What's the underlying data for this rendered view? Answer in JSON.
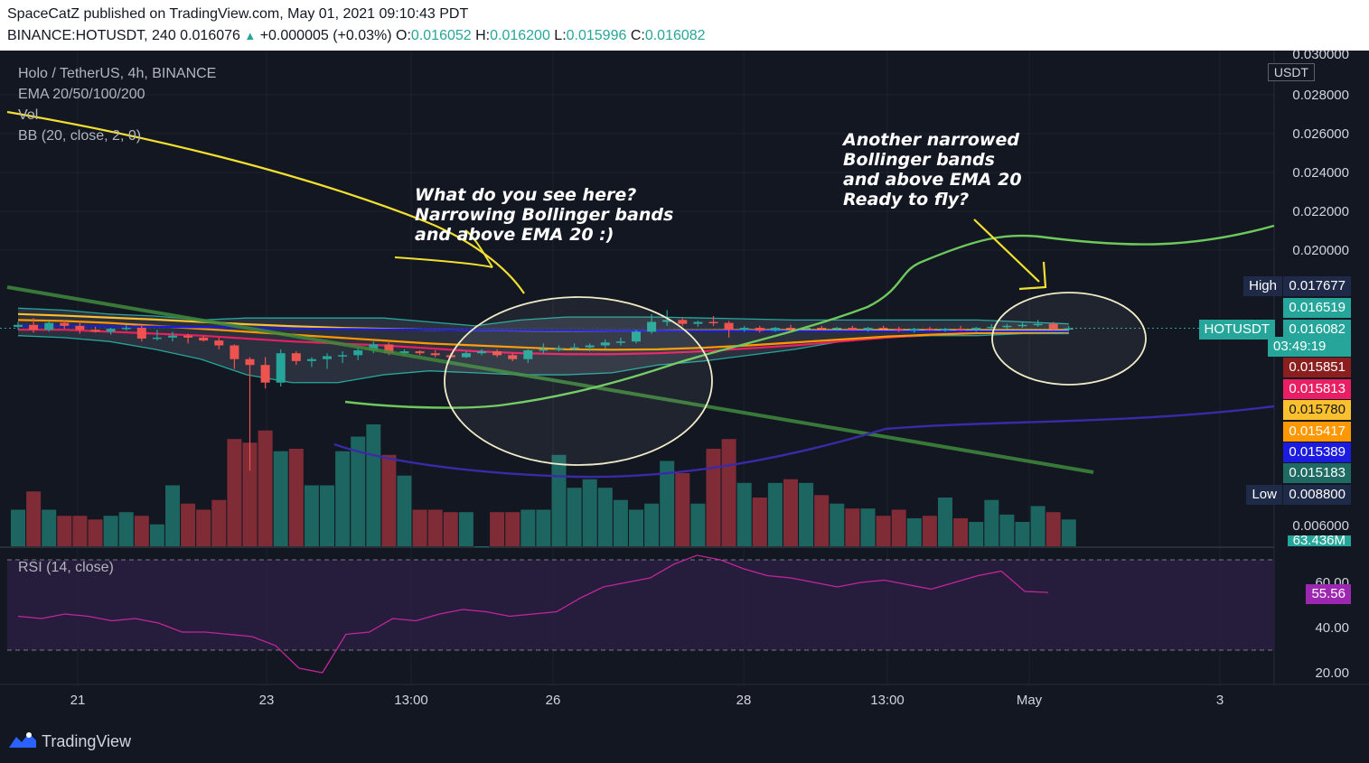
{
  "header": {
    "publish_line": "SpaceCatZ published on TradingView.com, May 01, 2021 09:10:43 PDT",
    "symbol": "BINANCE:HOTUSDT, 240",
    "last": "0.016076",
    "up_glyph": "▲",
    "change": "+0.000005 (+0.03%)",
    "o_label": "O:",
    "o_value": "0.016052",
    "h_label": "H:",
    "h_value": "0.016200",
    "l_label": "L:",
    "l_value": "0.015996",
    "c_label": "C:",
    "c_value": "0.016082"
  },
  "legend": {
    "pair": "Holo / TetherUS, 4h, BINANCE",
    "ema": "EMA 20/50/100/200",
    "vol": "Vol",
    "bb": "BB (20, close, 2, 0)",
    "rsi": "RSI (14, close)"
  },
  "annotations": {
    "note1": "What do you see here?\nNarrowing Bollinger bands\nand above EMA 20 :)",
    "note2": "Another narrowed\nBollinger bands\nand above EMA 20\nReady to fly?"
  },
  "price_axis": {
    "currency": "USDT",
    "ticks": [
      "0.030000",
      "0.028000",
      "0.026000",
      "0.024000",
      "0.022000",
      "0.020000",
      "0.006000"
    ],
    "rsi_ticks": [
      "60.00",
      "40.00",
      "20.00"
    ]
  },
  "price_tags": {
    "high_label": "High",
    "high_value": "0.017677",
    "t1": "0.016519",
    "symbol_label": "HOTUSDT",
    "symbol_value": "0.016082",
    "countdown": "03:49:19",
    "t2": "0.015851",
    "t3": "0.015813",
    "t4": "0.015780",
    "t5": "0.015417",
    "t6": "0.015389",
    "t7": "0.015183",
    "low_label": "Low",
    "low_value": "0.008800",
    "volume": "63.436M",
    "rsi_value": "55.56"
  },
  "time_axis": {
    "ticks": [
      "21",
      "23",
      "13:00",
      "26",
      "28",
      "13:00",
      "May",
      "3"
    ]
  },
  "footer": {
    "brand": "TradingView"
  },
  "colors": {
    "background": "#131722",
    "up": "#26a69a",
    "down": "#ef5350",
    "ema20": "#e91e63",
    "ema50": "#ff9800",
    "ema100": "#fbc02d",
    "ema200": "#1c1ce0",
    "bb_band": "#26a69a",
    "rsi": "#9c27b0"
  },
  "chart_data": {
    "type": "candlestick",
    "title": "Holo / TetherUS, 4h, BINANCE",
    "timeframe": "4h",
    "x_ticks": [
      "21",
      "23",
      "13:00",
      "26",
      "28",
      "13:00",
      "May",
      "3"
    ],
    "candles": [
      {
        "o": 0.01615,
        "h": 0.0164,
        "l": 0.016,
        "c": 0.01625
      },
      {
        "o": 0.01625,
        "h": 0.0166,
        "l": 0.01585,
        "c": 0.016
      },
      {
        "o": 0.016,
        "h": 0.01645,
        "l": 0.0159,
        "c": 0.01635
      },
      {
        "o": 0.01635,
        "h": 0.0165,
        "l": 0.01605,
        "c": 0.0162
      },
      {
        "o": 0.0162,
        "h": 0.0164,
        "l": 0.0158,
        "c": 0.016
      },
      {
        "o": 0.016,
        "h": 0.01615,
        "l": 0.01585,
        "c": 0.0159
      },
      {
        "o": 0.0159,
        "h": 0.0161,
        "l": 0.01575,
        "c": 0.01605
      },
      {
        "o": 0.01605,
        "h": 0.01625,
        "l": 0.01595,
        "c": 0.0161
      },
      {
        "o": 0.0161,
        "h": 0.0162,
        "l": 0.0154,
        "c": 0.01555
      },
      {
        "o": 0.01555,
        "h": 0.016,
        "l": 0.01545,
        "c": 0.0156
      },
      {
        "o": 0.0156,
        "h": 0.0159,
        "l": 0.0154,
        "c": 0.0157
      },
      {
        "o": 0.0157,
        "h": 0.0158,
        "l": 0.0153,
        "c": 0.0156
      },
      {
        "o": 0.0156,
        "h": 0.0157,
        "l": 0.0154,
        "c": 0.01545
      },
      {
        "o": 0.01545,
        "h": 0.0156,
        "l": 0.015,
        "c": 0.0152
      },
      {
        "o": 0.0152,
        "h": 0.01525,
        "l": 0.014,
        "c": 0.0145
      },
      {
        "o": 0.0145,
        "h": 0.0146,
        "l": 0.0088,
        "c": 0.0142
      },
      {
        "o": 0.0142,
        "h": 0.0146,
        "l": 0.013,
        "c": 0.0133
      },
      {
        "o": 0.0133,
        "h": 0.015,
        "l": 0.0131,
        "c": 0.0148
      },
      {
        "o": 0.0148,
        "h": 0.0149,
        "l": 0.0142,
        "c": 0.0144
      },
      {
        "o": 0.0144,
        "h": 0.0146,
        "l": 0.0141,
        "c": 0.0145
      },
      {
        "o": 0.0145,
        "h": 0.0148,
        "l": 0.014,
        "c": 0.01465
      },
      {
        "o": 0.01465,
        "h": 0.0149,
        "l": 0.0143,
        "c": 0.0147
      },
      {
        "o": 0.0147,
        "h": 0.0151,
        "l": 0.01445,
        "c": 0.01495
      },
      {
        "o": 0.01495,
        "h": 0.0154,
        "l": 0.0148,
        "c": 0.01525
      },
      {
        "o": 0.01525,
        "h": 0.01535,
        "l": 0.0147,
        "c": 0.0148
      },
      {
        "o": 0.0148,
        "h": 0.015,
        "l": 0.0147,
        "c": 0.0149
      },
      {
        "o": 0.0149,
        "h": 0.01495,
        "l": 0.0147,
        "c": 0.0148
      },
      {
        "o": 0.0148,
        "h": 0.01495,
        "l": 0.0146,
        "c": 0.0147
      },
      {
        "o": 0.0147,
        "h": 0.0148,
        "l": 0.01455,
        "c": 0.0146
      },
      {
        "o": 0.0146,
        "h": 0.0149,
        "l": 0.01455,
        "c": 0.0148
      },
      {
        "o": 0.0148,
        "h": 0.015,
        "l": 0.0147,
        "c": 0.0149
      },
      {
        "o": 0.0149,
        "h": 0.015,
        "l": 0.0146,
        "c": 0.0147
      },
      {
        "o": 0.0147,
        "h": 0.0148,
        "l": 0.0144,
        "c": 0.0145
      },
      {
        "o": 0.0145,
        "h": 0.015,
        "l": 0.0143,
        "c": 0.01495
      },
      {
        "o": 0.01495,
        "h": 0.0153,
        "l": 0.0148,
        "c": 0.015
      },
      {
        "o": 0.015,
        "h": 0.0152,
        "l": 0.0149,
        "c": 0.01505
      },
      {
        "o": 0.01505,
        "h": 0.0153,
        "l": 0.01495,
        "c": 0.0151
      },
      {
        "o": 0.0151,
        "h": 0.0153,
        "l": 0.0149,
        "c": 0.0152
      },
      {
        "o": 0.0152,
        "h": 0.0155,
        "l": 0.01505,
        "c": 0.01535
      },
      {
        "o": 0.01535,
        "h": 0.0156,
        "l": 0.0152,
        "c": 0.0154
      },
      {
        "o": 0.0154,
        "h": 0.016,
        "l": 0.0153,
        "c": 0.0159
      },
      {
        "o": 0.0159,
        "h": 0.0168,
        "l": 0.0158,
        "c": 0.0164
      },
      {
        "o": 0.0164,
        "h": 0.017,
        "l": 0.0162,
        "c": 0.0165
      },
      {
        "o": 0.0165,
        "h": 0.0166,
        "l": 0.0162,
        "c": 0.0163
      },
      {
        "o": 0.0163,
        "h": 0.01645,
        "l": 0.01615,
        "c": 0.0164
      },
      {
        "o": 0.0164,
        "h": 0.0167,
        "l": 0.0162,
        "c": 0.01635
      },
      {
        "o": 0.01635,
        "h": 0.01645,
        "l": 0.0156,
        "c": 0.016
      },
      {
        "o": 0.016,
        "h": 0.0162,
        "l": 0.0159,
        "c": 0.0161
      },
      {
        "o": 0.0161,
        "h": 0.0162,
        "l": 0.01585,
        "c": 0.01595
      },
      {
        "o": 0.01595,
        "h": 0.01615,
        "l": 0.0159,
        "c": 0.0161
      },
      {
        "o": 0.0161,
        "h": 0.01625,
        "l": 0.01595,
        "c": 0.01605
      },
      {
        "o": 0.01605,
        "h": 0.0162,
        "l": 0.01595,
        "c": 0.0161
      },
      {
        "o": 0.0161,
        "h": 0.0162,
        "l": 0.016,
        "c": 0.01605
      },
      {
        "o": 0.01605,
        "h": 0.01615,
        "l": 0.01595,
        "c": 0.0161
      },
      {
        "o": 0.0161,
        "h": 0.0162,
        "l": 0.01595,
        "c": 0.016
      },
      {
        "o": 0.016,
        "h": 0.01615,
        "l": 0.0159,
        "c": 0.0161
      },
      {
        "o": 0.0161,
        "h": 0.0162,
        "l": 0.016,
        "c": 0.01605
      },
      {
        "o": 0.01605,
        "h": 0.01615,
        "l": 0.0159,
        "c": 0.01595
      },
      {
        "o": 0.01595,
        "h": 0.0161,
        "l": 0.01585,
        "c": 0.01605
      },
      {
        "o": 0.01605,
        "h": 0.01615,
        "l": 0.01595,
        "c": 0.016
      },
      {
        "o": 0.016,
        "h": 0.0161,
        "l": 0.0159,
        "c": 0.01605
      },
      {
        "o": 0.01605,
        "h": 0.0162,
        "l": 0.01595,
        "c": 0.016
      },
      {
        "o": 0.016,
        "h": 0.01615,
        "l": 0.0159,
        "c": 0.0161
      },
      {
        "o": 0.0161,
        "h": 0.0163,
        "l": 0.016,
        "c": 0.01615
      },
      {
        "o": 0.01615,
        "h": 0.0163,
        "l": 0.01605,
        "c": 0.0162
      },
      {
        "o": 0.0162,
        "h": 0.0164,
        "l": 0.0161,
        "c": 0.01625
      },
      {
        "o": 0.01625,
        "h": 0.0165,
        "l": 0.01615,
        "c": 0.0163
      },
      {
        "o": 0.0163,
        "h": 0.0164,
        "l": 0.01595,
        "c": 0.01605
      },
      {
        "o": 0.01605,
        "h": 0.0162,
        "l": 0.01596,
        "c": 0.01608
      }
    ],
    "volume_relative": [
      0.3,
      0.45,
      0.3,
      0.25,
      0.25,
      0.22,
      0.25,
      0.28,
      0.25,
      0.18,
      0.5,
      0.35,
      0.3,
      0.38,
      0.88,
      0.85,
      0.95,
      0.78,
      0.8,
      0.5,
      0.5,
      0.78,
      0.9,
      1.0,
      0.75,
      0.58,
      0.3,
      0.3,
      0.28,
      0.28,
      0.0,
      0.28,
      0.28,
      0.3,
      0.3,
      0.75,
      0.48,
      0.55,
      0.48,
      0.38,
      0.3,
      0.35,
      0.7,
      0.6,
      0.35,
      0.8,
      0.88,
      0.52,
      0.4,
      0.52,
      0.55,
      0.52,
      0.42,
      0.35,
      0.31,
      0.31,
      0.25,
      0.3,
      0.23,
      0.25,
      0.4,
      0.23,
      0.2,
      0.38,
      0.26,
      0.2,
      0.33,
      0.28,
      0.22
    ],
    "ema20": [
      0.016,
      0.016,
      0.0159,
      0.0158,
      0.0157,
      0.01555,
      0.0154,
      0.0153,
      0.0152,
      0.01505,
      0.0149,
      0.0148,
      0.01475,
      0.01475,
      0.0148,
      0.0149,
      0.01505,
      0.0152,
      0.0154,
      0.0156,
      0.01575,
      0.01585,
      0.01588,
      0.0159
    ],
    "ema50": [
      0.0165,
      0.01645,
      0.01635,
      0.0162,
      0.01605,
      0.0159,
      0.01575,
      0.0156,
      0.01545,
      0.0153,
      0.0152,
      0.0151,
      0.015,
      0.01498,
      0.015,
      0.01508,
      0.0152,
      0.01535,
      0.0155,
      0.01565,
      0.01575,
      0.01582,
      0.01585,
      0.01588
    ],
    "ema100": [
      0.0168,
      0.01672,
      0.01662,
      0.01652,
      0.0164,
      0.01628,
      0.01618,
      0.0161,
      0.01605,
      0.016,
      0.01598,
      0.01596,
      0.01595,
      0.01595,
      0.01596,
      0.01597,
      0.01598,
      0.01598,
      0.01598,
      0.01598,
      0.01598,
      0.01598,
      0.01598,
      0.01598
    ],
    "ema200": [
      0.0162,
      0.0162,
      0.01618,
      0.01616,
      0.01613,
      0.0161,
      0.01607,
      0.01604,
      0.01602,
      0.016,
      0.01598,
      0.01597,
      0.01596,
      0.01595,
      0.01595,
      0.01594,
      0.01594,
      0.01593,
      0.01593,
      0.01592,
      0.01592,
      0.01592,
      0.01592,
      0.01592
    ],
    "bb_upper": [
      0.0171,
      0.017,
      0.0168,
      0.0167,
      0.0165,
      0.0166,
      0.0166,
      0.0166,
      0.0166,
      0.0164,
      0.0162,
      0.0165,
      0.01665,
      0.01665,
      0.01665,
      0.0166,
      0.01655,
      0.0165,
      0.0165,
      0.0165,
      0.0165,
      0.0165,
      0.0164,
      0.0163
    ],
    "bb_lower": [
      0.0157,
      0.0156,
      0.0154,
      0.015,
      0.0145,
      0.0137,
      0.0133,
      0.0133,
      0.0137,
      0.0139,
      0.0138,
      0.0137,
      0.0137,
      0.0138,
      0.0142,
      0.0144,
      0.0147,
      0.015,
      0.0154,
      0.0156,
      0.0157,
      0.0157,
      0.0158,
      0.0158
    ],
    "rsi": [
      45,
      44,
      46,
      45,
      43,
      44,
      42,
      38,
      38,
      37,
      36,
      32,
      22,
      20,
      37,
      38,
      44,
      43,
      46,
      48,
      47,
      45,
      46,
      47,
      53,
      58,
      60,
      62,
      68,
      72,
      70,
      66,
      63,
      62,
      60,
      58,
      60,
      61,
      59,
      57,
      60,
      63,
      65,
      56,
      55.56
    ],
    "rsi_levels": [
      70,
      30
    ],
    "y_axis": {
      "min": 0.0048,
      "max": 0.0302
    },
    "rsi_axis": {
      "min": 10,
      "max": 78
    }
  }
}
